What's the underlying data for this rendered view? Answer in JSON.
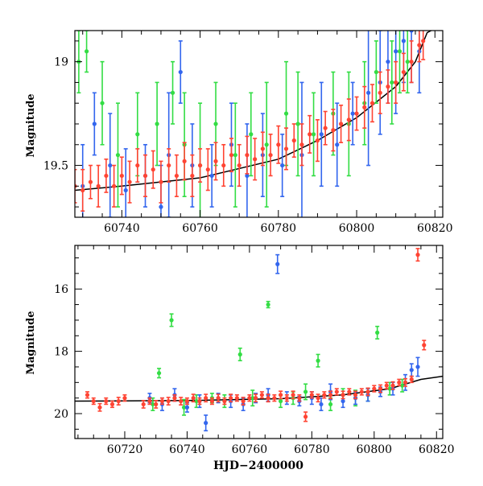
{
  "chart_data": [
    {
      "id": "top",
      "type": "scatter",
      "ylabel": "Magnitude",
      "xlabel": "",
      "xlim": [
        60728,
        60822
      ],
      "ylim": [
        19.75,
        18.85
      ],
      "y_inverted": true,
      "x_ticks": [
        60740,
        60760,
        60780,
        60800,
        60820
      ],
      "y_ticks": [
        19,
        19.5
      ],
      "y_tick_labels": [
        "19",
        "19.5"
      ],
      "model_curve": {
        "color": "#000000",
        "x": [
          60728,
          60740,
          60760,
          60780,
          60790,
          60800,
          60810,
          60815,
          60818,
          60822
        ],
        "y": [
          19.62,
          19.6,
          19.56,
          19.47,
          19.38,
          19.27,
          19.12,
          19.0,
          18.86,
          18.82
        ]
      },
      "series": [
        {
          "color": "#3366ee",
          "x": [
            60730,
            60733,
            60737,
            60741,
            60746,
            60750,
            60752,
            60755,
            60758,
            60763,
            60768,
            60772,
            60776,
            60781,
            60786,
            60791,
            60795,
            60799,
            60803,
            60806,
            60808,
            60810,
            60812,
            60814,
            60816
          ],
          "y": [
            19.6,
            19.3,
            19.5,
            19.62,
            19.55,
            19.7,
            19.45,
            19.05,
            19.5,
            19.55,
            19.4,
            19.55,
            19.45,
            19.5,
            19.45,
            19.35,
            19.4,
            19.25,
            19.15,
            19.1,
            19.0,
            18.95,
            18.9,
            18.85,
            18.95
          ],
          "yerr": [
            0.2,
            0.15,
            0.25,
            0.2,
            0.15,
            0.2,
            0.3,
            0.15,
            0.2,
            0.15,
            0.2,
            0.25,
            0.2,
            0.15,
            0.35,
            0.25,
            0.2,
            0.15,
            0.35,
            0.25,
            0.2,
            0.3,
            0.2,
            0.25,
            0.2
          ]
        },
        {
          "color": "#33dd44",
          "x": [
            60729,
            60731,
            60735,
            60739,
            60744,
            60749,
            60753,
            60756,
            60760,
            60764,
            60769,
            60773,
            60777,
            60782,
            60785,
            60789,
            60794,
            60798,
            60802,
            60805,
            60809,
            60811,
            60813
          ],
          "y": [
            19.0,
            18.95,
            19.2,
            19.45,
            19.35,
            19.3,
            19.15,
            19.4,
            19.5,
            19.3,
            19.45,
            19.35,
            19.4,
            19.25,
            19.3,
            19.35,
            19.25,
            19.3,
            19.2,
            19.05,
            19.1,
            18.95,
            19.0
          ],
          "yerr": [
            0.15,
            0.1,
            0.2,
            0.25,
            0.2,
            0.2,
            0.15,
            0.25,
            0.3,
            0.2,
            0.25,
            0.2,
            0.3,
            0.25,
            0.25,
            0.2,
            0.2,
            0.25,
            0.2,
            0.15,
            0.2,
            0.2,
            0.15
          ]
        },
        {
          "color": "#ff4433",
          "x": [
            60728,
            60730,
            60732,
            60734,
            60736,
            60738,
            60740,
            60742,
            60744,
            60746,
            60748,
            60750,
            60752,
            60754,
            60756,
            60758,
            60760,
            60762,
            60764,
            60766,
            60768,
            60770,
            60772,
            60774,
            60776,
            60778,
            60780,
            60782,
            60784,
            60786,
            60788,
            60790,
            60792,
            60794,
            60796,
            60798,
            60800,
            60802,
            60804,
            60806,
            60808,
            60810,
            60812,
            60814,
            60816,
            60817
          ],
          "y": [
            19.6,
            19.62,
            19.58,
            19.6,
            19.55,
            19.6,
            19.55,
            19.58,
            19.5,
            19.55,
            19.52,
            19.58,
            19.5,
            19.55,
            19.48,
            19.55,
            19.5,
            19.52,
            19.48,
            19.5,
            19.45,
            19.5,
            19.45,
            19.47,
            19.42,
            19.45,
            19.4,
            19.42,
            19.38,
            19.4,
            19.35,
            19.38,
            19.32,
            19.33,
            19.3,
            19.28,
            19.25,
            19.22,
            19.2,
            19.15,
            19.12,
            19.1,
            19.05,
            19.0,
            18.92,
            18.9
          ],
          "yerr": [
            0.08,
            0.1,
            0.08,
            0.1,
            0.08,
            0.1,
            0.09,
            0.1,
            0.08,
            0.1,
            0.09,
            0.1,
            0.08,
            0.1,
            0.09,
            0.1,
            0.08,
            0.1,
            0.09,
            0.1,
            0.08,
            0.1,
            0.09,
            0.1,
            0.08,
            0.1,
            0.09,
            0.1,
            0.08,
            0.1,
            0.09,
            0.1,
            0.08,
            0.1,
            0.09,
            0.1,
            0.08,
            0.1,
            0.09,
            0.1,
            0.08,
            0.1,
            0.09,
            0.1,
            0.08,
            0.09
          ]
        }
      ]
    },
    {
      "id": "bottom",
      "type": "scatter",
      "ylabel": "Magnitude",
      "xlabel": "HJD−2400000",
      "xlim": [
        60704,
        60822
      ],
      "ylim": [
        20.8,
        14.6
      ],
      "y_inverted": true,
      "x_ticks": [
        60720,
        60740,
        60760,
        60780,
        60800,
        60820
      ],
      "y_ticks": [
        16,
        18,
        20
      ],
      "y_tick_labels": [
        "16",
        "18",
        "20"
      ],
      "model_curve": {
        "color": "#000000",
        "x": [
          60704,
          60740,
          60770,
          60790,
          60805,
          60815,
          60822
        ],
        "y": [
          19.6,
          19.58,
          19.52,
          19.4,
          19.2,
          18.9,
          18.8
        ]
      },
      "series": [
        {
          "color": "#3366ee",
          "x": [
            60728,
            60732,
            60736,
            60740,
            60744,
            60746,
            60750,
            60754,
            60758,
            60762,
            60766,
            60769,
            60772,
            60776,
            60780,
            60783,
            60786,
            60790,
            60794,
            60798,
            60802,
            60806,
            60810,
            60812,
            60814
          ],
          "y": [
            19.5,
            19.7,
            19.4,
            19.8,
            19.6,
            20.3,
            19.5,
            19.6,
            19.7,
            19.5,
            19.4,
            15.2,
            19.5,
            19.6,
            19.5,
            19.7,
            19.3,
            19.6,
            19.5,
            19.4,
            19.3,
            19.2,
            19.0,
            18.6,
            18.5
          ],
          "yerr": [
            0.15,
            0.2,
            0.2,
            0.15,
            0.2,
            0.25,
            0.15,
            0.2,
            0.2,
            0.15,
            0.2,
            0.3,
            0.2,
            0.15,
            0.2,
            0.2,
            0.25,
            0.2,
            0.2,
            0.2,
            0.15,
            0.2,
            0.25,
            0.2,
            0.3
          ]
        },
        {
          "color": "#33dd44",
          "x": [
            60729,
            60731,
            60735,
            60739,
            60743,
            60748,
            60752,
            60757,
            60761,
            60766,
            60770,
            60774,
            60778,
            60782,
            60786,
            60790,
            60794,
            60798,
            60801,
            60805,
            60809
          ],
          "y": [
            19.7,
            18.7,
            17.0,
            19.8,
            19.6,
            19.5,
            19.6,
            18.1,
            19.5,
            16.5,
            19.6,
            19.5,
            19.3,
            18.3,
            19.7,
            19.4,
            19.5,
            19.4,
            17.4,
            19.2,
            19.1
          ],
          "yerr": [
            0.2,
            0.15,
            0.2,
            0.25,
            0.2,
            0.15,
            0.2,
            0.2,
            0.25,
            0.1,
            0.2,
            0.2,
            0.25,
            0.2,
            0.2,
            0.2,
            0.25,
            0.2,
            0.2,
            0.2,
            0.2
          ]
        },
        {
          "color": "#ff4433",
          "x": [
            60708,
            60710,
            60712,
            60714,
            60716,
            60718,
            60720,
            60726,
            60728,
            60730,
            60732,
            60734,
            60736,
            60738,
            60740,
            60742,
            60744,
            60746,
            60748,
            60750,
            60752,
            60754,
            60756,
            60758,
            60760,
            60762,
            60764,
            60766,
            60768,
            60770,
            60772,
            60774,
            60776,
            60778,
            60780,
            60782,
            60784,
            60786,
            60788,
            60790,
            60792,
            60794,
            60796,
            60798,
            60800,
            60802,
            60804,
            60806,
            60808,
            60810,
            60812,
            60814,
            60816
          ],
          "y": [
            19.4,
            19.6,
            19.8,
            19.6,
            19.7,
            19.6,
            19.5,
            19.7,
            19.6,
            19.7,
            19.6,
            19.6,
            19.5,
            19.6,
            19.6,
            19.5,
            19.6,
            19.5,
            19.6,
            19.5,
            19.6,
            19.5,
            19.5,
            19.6,
            19.5,
            19.5,
            19.4,
            19.5,
            19.5,
            19.4,
            19.5,
            19.4,
            19.5,
            20.1,
            19.4,
            19.5,
            19.4,
            19.4,
            19.3,
            19.4,
            19.3,
            19.4,
            19.3,
            19.3,
            19.2,
            19.2,
            19.1,
            19.1,
            19.0,
            19.0,
            18.9,
            14.9,
            17.8
          ],
          "yerr": [
            0.1,
            0.1,
            0.12,
            0.1,
            0.1,
            0.12,
            0.1,
            0.12,
            0.1,
            0.12,
            0.1,
            0.12,
            0.1,
            0.12,
            0.1,
            0.12,
            0.1,
            0.12,
            0.1,
            0.12,
            0.1,
            0.12,
            0.1,
            0.12,
            0.1,
            0.12,
            0.1,
            0.12,
            0.1,
            0.12,
            0.1,
            0.12,
            0.1,
            0.15,
            0.1,
            0.12,
            0.1,
            0.12,
            0.1,
            0.12,
            0.1,
            0.12,
            0.1,
            0.12,
            0.1,
            0.12,
            0.1,
            0.12,
            0.1,
            0.12,
            0.1,
            0.2,
            0.15
          ]
        }
      ]
    }
  ]
}
